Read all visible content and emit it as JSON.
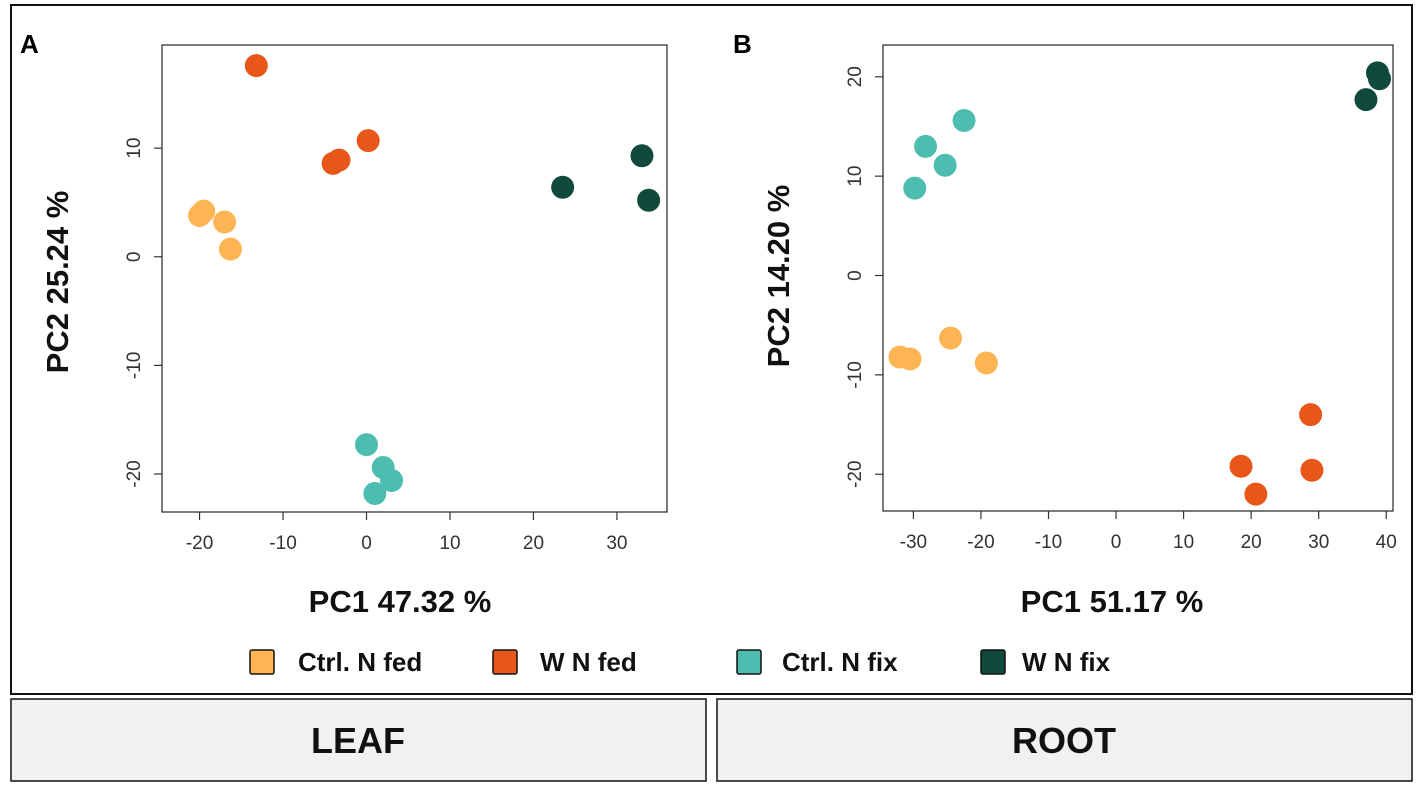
{
  "chart_data": [
    {
      "panel": "A",
      "type": "scatter",
      "tissue": "LEAF",
      "xlabel": "PC1 47.32 %",
      "ylabel": "PC2 25.24 %",
      "xlim": [
        -24.5,
        36
      ],
      "ylim": [
        -23.5,
        19.5
      ],
      "xticks": [
        -20,
        -10,
        0,
        10,
        20,
        30
      ],
      "yticks": [
        -20,
        -10,
        0,
        10
      ],
      "series": [
        {
          "name": "Ctrl. N fed",
          "color": "#FDB553",
          "points": [
            [
              -20,
              3.8
            ],
            [
              -19.5,
              4.2
            ],
            [
              -17,
              3.2
            ],
            [
              -16.3,
              0.7
            ]
          ]
        },
        {
          "name": "W N fed",
          "color": "#E8561A",
          "points": [
            [
              -13.2,
              17.6
            ],
            [
              -4,
              8.6
            ],
            [
              -3.3,
              8.9
            ],
            [
              0.2,
              10.7
            ]
          ]
        },
        {
          "name": "Ctrl. N fix",
          "color": "#4DBDB0",
          "points": [
            [
              0,
              -17.3
            ],
            [
              2,
              -19.4
            ],
            [
              3,
              -20.6
            ],
            [
              1,
              -21.8
            ]
          ]
        },
        {
          "name": "W N fix",
          "color": "#0F4A3C",
          "points": [
            [
              23.5,
              6.4
            ],
            [
              33,
              9.3
            ],
            [
              33.8,
              5.2
            ]
          ]
        }
      ]
    },
    {
      "panel": "B",
      "type": "scatter",
      "tissue": "ROOT",
      "xlabel": "PC1 51.17 %",
      "ylabel": "PC2 14.20 %",
      "xlim": [
        -34.5,
        41
      ],
      "ylim": [
        -23.7,
        23.2
      ],
      "xticks": [
        -30,
        -20,
        -10,
        0,
        10,
        20,
        30,
        40
      ],
      "yticks": [
        -20,
        -10,
        0,
        10,
        20
      ],
      "series": [
        {
          "name": "Ctrl. N fed",
          "color": "#FDB553",
          "points": [
            [
              -32,
              -8.2
            ],
            [
              -30.5,
              -8.4
            ],
            [
              -24.5,
              -6.3
            ],
            [
              -19.2,
              -8.8
            ]
          ]
        },
        {
          "name": "W N fed",
          "color": "#E8561A",
          "points": [
            [
              18.5,
              -19.2
            ],
            [
              20.7,
              -22
            ],
            [
              28.8,
              -14
            ],
            [
              29,
              -19.6
            ]
          ]
        },
        {
          "name": "Ctrl. N fix",
          "color": "#4DBDB0",
          "points": [
            [
              -29.8,
              8.8
            ],
            [
              -28.2,
              13
            ],
            [
              -25.3,
              11.1
            ],
            [
              -22.5,
              15.6
            ]
          ]
        },
        {
          "name": "W N fix",
          "color": "#0F4A3C",
          "points": [
            [
              37,
              17.7
            ],
            [
              38.7,
              20.4
            ],
            [
              39,
              19.8
            ]
          ]
        }
      ]
    }
  ],
  "legend": [
    {
      "label": "Ctrl. N fed",
      "color": "#FDB553"
    },
    {
      "label": "W N fed",
      "color": "#E8561A"
    },
    {
      "label": "Ctrl. N fix",
      "color": "#4DBDB0"
    },
    {
      "label": "W N fix",
      "color": "#0F4A3C"
    }
  ],
  "footer": {
    "left_label": "LEAF",
    "right_label": "ROOT"
  }
}
